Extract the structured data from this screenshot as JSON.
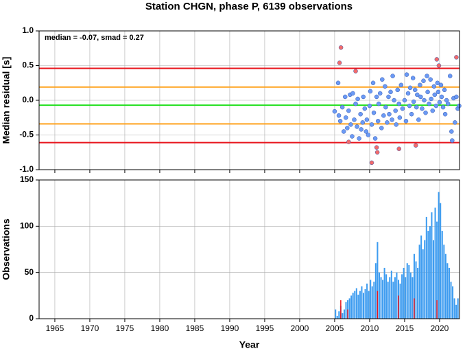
{
  "chart_data": [
    {
      "type": "scatter",
      "title": "Station CHGN, phase P, 6139 observations",
      "ylabel": "Median residual [s]",
      "annotation": "median = -0.07, smad = 0.27",
      "xlim": [
        1962.75,
        2022.85
      ],
      "xticks": [
        1965,
        1970,
        1975,
        1980,
        1985,
        1990,
        1995,
        2000,
        2005,
        2010,
        2015,
        2020
      ],
      "ylim": [
        -1.0,
        1.0
      ],
      "yticks": [
        {
          "value": -1.0,
          "label": "-1.0"
        },
        -0.5,
        {
          "value": 0.0,
          "label": "0.0"
        },
        0.5,
        {
          "value": 1.0,
          "label": "1.0"
        }
      ],
      "grid": true,
      "hlines": [
        {
          "value": 0.46,
          "color": "#e8141c"
        },
        {
          "value": 0.19,
          "color": "#ffa21c"
        },
        {
          "value": -0.07,
          "color": "#22e01e"
        },
        {
          "value": -0.34,
          "color": "#ffa21c"
        },
        {
          "value": -0.61,
          "color": "#e8141c"
        }
      ],
      "series": [
        {
          "color": "#6b9af5",
          "x": [
            2005.0,
            2005.5,
            2005.6,
            2005.8,
            2006.1,
            2006.3,
            2006.5,
            2006.6,
            2006.8,
            2007.0,
            2007.2,
            2007.3,
            2007.5,
            2007.6,
            2007.8,
            2008.0,
            2008.2,
            2008.3,
            2008.5,
            2008.7,
            2008.8,
            2009.0,
            2009.1,
            2009.3,
            2009.5,
            2009.6,
            2009.8,
            2010.0,
            2010.1,
            2010.3,
            2010.5,
            2010.6,
            2010.8,
            2011.0,
            2011.2,
            2011.3,
            2011.5,
            2011.7,
            2011.8,
            2012.0,
            2012.2,
            2012.3,
            2012.5,
            2012.7,
            2012.8,
            2013.0,
            2013.2,
            2013.3,
            2013.5,
            2013.7,
            2013.8,
            2014.0,
            2014.2,
            2014.3,
            2014.5,
            2014.7,
            2015.0,
            2015.2,
            2015.3,
            2015.5,
            2015.7,
            2015.8,
            2016.0,
            2016.2,
            2016.3,
            2016.5,
            2016.7,
            2016.8,
            2017.0,
            2017.2,
            2017.3,
            2017.5,
            2017.7,
            2017.8,
            2018.0,
            2018.2,
            2018.3,
            2018.5,
            2018.7,
            2018.8,
            2019.0,
            2019.2,
            2019.3,
            2019.5,
            2019.7,
            2019.8,
            2020.0,
            2020.2,
            2020.3,
            2020.5,
            2020.7,
            2020.8,
            2021.0,
            2021.2,
            2021.5,
            2021.7,
            2021.8,
            2022.0,
            2022.2,
            2022.4,
            2022.6,
            2022.8
          ],
          "values": [
            -0.16,
            0.25,
            -0.22,
            -0.3,
            -0.1,
            -0.45,
            0.05,
            -0.25,
            -0.4,
            -0.15,
            0.08,
            -0.35,
            -0.52,
            0.1,
            -0.28,
            -0.05,
            -0.38,
            0.02,
            -0.55,
            -0.2,
            -0.42,
            -0.32,
            0.05,
            -0.12,
            -0.45,
            -0.28,
            -0.5,
            -0.08,
            0.13,
            -0.35,
            0.25,
            -0.18,
            -0.55,
            0.05,
            -0.3,
            -0.05,
            0.1,
            -0.4,
            0.3,
            -0.22,
            0.2,
            -0.1,
            -0.32,
            0.05,
            -0.2,
            0.12,
            -0.28,
            0.35,
            0.0,
            -0.15,
            -0.35,
            0.15,
            -0.05,
            -0.25,
            0.22,
            -0.12,
            0.0,
            -0.3,
            0.37,
            0.1,
            -0.08,
            0.18,
            -0.2,
            0.32,
            -0.02,
            0.15,
            -0.1,
            0.08,
            -0.28,
            0.22,
            0.05,
            -0.12,
            0.28,
            0.0,
            -0.18,
            0.35,
            0.12,
            -0.05,
            0.3,
            0.02,
            -0.15,
            0.2,
            0.08,
            -0.08,
            0.25,
            0.12,
            -0.03,
            0.22,
            0.05,
            -0.1,
            0.15,
            -0.2,
            0.0,
            -0.05,
            0.35,
            -0.45,
            -0.58,
            0.03,
            -0.32,
            0.05,
            -0.12,
            -0.08
          ]
        },
        {
          "color": "#f26b6b",
          "x": [
            2005.7,
            2005.9,
            2007.0,
            2008.0,
            2010.3,
            2011.0,
            2011.1,
            2014.2,
            2016.6,
            2019.6,
            2019.9,
            2022.4
          ],
          "values": [
            0.54,
            0.76,
            -0.6,
            0.42,
            -0.9,
            -0.68,
            -0.75,
            -0.7,
            -0.65,
            0.59,
            0.5,
            0.62
          ]
        }
      ]
    },
    {
      "type": "histogram",
      "ylabel": "Observations",
      "xlabel": "Year",
      "xlim": [
        1962.75,
        2022.85
      ],
      "xticks": [
        1965,
        1970,
        1975,
        1980,
        1985,
        1990,
        1995,
        2000,
        2005,
        2010,
        2015,
        2020
      ],
      "ylim": [
        0,
        150
      ],
      "yticks": [
        0,
        50,
        100,
        150
      ],
      "grid": true,
      "bins": [
        2004.75,
        2005,
        2005.25,
        2005.5,
        2005.75,
        2006,
        2006.25,
        2006.5,
        2006.75,
        2007,
        2007.25,
        2007.5,
        2007.75,
        2008,
        2008.25,
        2008.5,
        2008.75,
        2009,
        2009.25,
        2009.5,
        2009.75,
        2010,
        2010.25,
        2010.5,
        2010.75,
        2011,
        2011.25,
        2011.5,
        2011.75,
        2012,
        2012.25,
        2012.5,
        2012.75,
        2013,
        2013.25,
        2013.5,
        2013.75,
        2014,
        2014.25,
        2014.5,
        2014.75,
        2015,
        2015.25,
        2015.5,
        2015.75,
        2016,
        2016.25,
        2016.5,
        2016.75,
        2017,
        2017.25,
        2017.5,
        2017.75,
        2018,
        2018.25,
        2018.5,
        2018.75,
        2019,
        2019.25,
        2019.5,
        2019.75,
        2020,
        2020.25,
        2020.5,
        2020.75,
        2021,
        2021.25,
        2021.5,
        2021.75,
        2022,
        2022.25,
        2022.5,
        2022.75
      ],
      "series": [
        {
          "color": "#3d9cf0",
          "values": [
            0,
            10,
            3,
            8,
            14,
            6,
            10,
            18,
            20,
            22,
            25,
            28,
            30,
            33,
            26,
            30,
            35,
            28,
            32,
            38,
            30,
            42,
            35,
            40,
            60,
            83,
            50,
            45,
            42,
            55,
            48,
            40,
            45,
            52,
            40,
            45,
            50,
            42,
            38,
            48,
            55,
            45,
            60,
            58,
            50,
            45,
            70,
            62,
            55,
            80,
            90,
            75,
            85,
            110,
            95,
            100,
            115,
            85,
            120,
            105,
            137,
            125,
            95,
            80,
            70,
            60,
            55,
            40,
            35,
            22,
            15,
            22
          ]
        },
        {
          "color": "#e8141c",
          "values": [
            0,
            0,
            0,
            0,
            20,
            0,
            0,
            0,
            10,
            0,
            0,
            0,
            0,
            0,
            0,
            0,
            0,
            0,
            0,
            0,
            0,
            0,
            0,
            0,
            0,
            30,
            0,
            0,
            0,
            0,
            0,
            0,
            0,
            0,
            0,
            0,
            0,
            25,
            0,
            0,
            0,
            0,
            0,
            0,
            0,
            0,
            22,
            0,
            0,
            0,
            0,
            0,
            0,
            0,
            0,
            0,
            0,
            0,
            0,
            20,
            0,
            0,
            0,
            0,
            0,
            0,
            0,
            0,
            0,
            0,
            0,
            0
          ]
        }
      ]
    }
  ]
}
